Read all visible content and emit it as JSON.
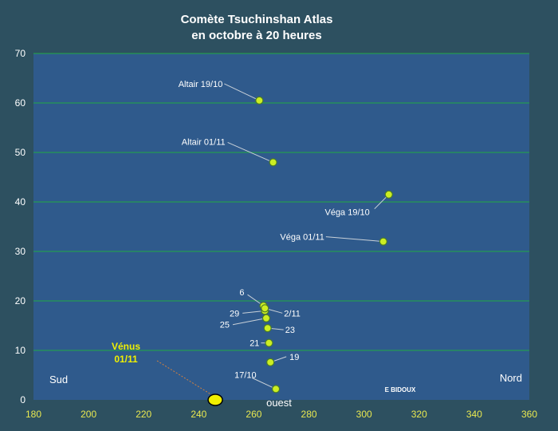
{
  "chart_data": {
    "type": "scatter",
    "title_line1": "Comète Tsuchinshan  Atlas",
    "title_line2": "en octobre à 20 heures",
    "xlim": [
      180,
      360
    ],
    "ylim": [
      0,
      70
    ],
    "xticks": [
      180,
      200,
      220,
      240,
      260,
      280,
      300,
      320,
      340,
      360
    ],
    "yticks": [
      0,
      10,
      20,
      30,
      40,
      50,
      60,
      70
    ],
    "grid": "horizontal",
    "colors": {
      "background": "#2d5060",
      "plot": "#2f5a8c",
      "grid": "#22aa44",
      "marker": "#ccee22",
      "marker_edge": "#4a7a2a",
      "venus": "#f0f000",
      "xtick_text": "#e8e850"
    },
    "comet": [
      {
        "label": "17/10",
        "x": 268,
        "y": 2.2
      },
      {
        "label": "19",
        "x": 266,
        "y": 7.6
      },
      {
        "label": "21",
        "x": 265.5,
        "y": 11.5
      },
      {
        "label": "23",
        "x": 265,
        "y": 14.5
      },
      {
        "label": "25",
        "x": 264.5,
        "y": 16.5
      },
      {
        "label": "29",
        "x": 264,
        "y": 18.0
      },
      {
        "label": "6",
        "x": 263.5,
        "y": 19.0
      },
      {
        "label": "2/11",
        "x": 264,
        "y": 18.5
      }
    ],
    "stars": [
      {
        "label": "Altair 19/10",
        "x": 262,
        "y": 60.5
      },
      {
        "label": "Altair 01/11",
        "x": 267,
        "y": 48.0
      },
      {
        "label": "Véga 19/10",
        "x": 309,
        "y": 41.5
      },
      {
        "label": "Véga 01/11",
        "x": 307,
        "y": 32.0
      }
    ],
    "venus": {
      "label_line1": "Vénus",
      "label_line2": "01/11",
      "x": 246,
      "y": 0
    },
    "annotations": {
      "sud": "Sud",
      "nord": "Nord",
      "ouest": "ouest",
      "credit": "E BIDOUX"
    }
  }
}
